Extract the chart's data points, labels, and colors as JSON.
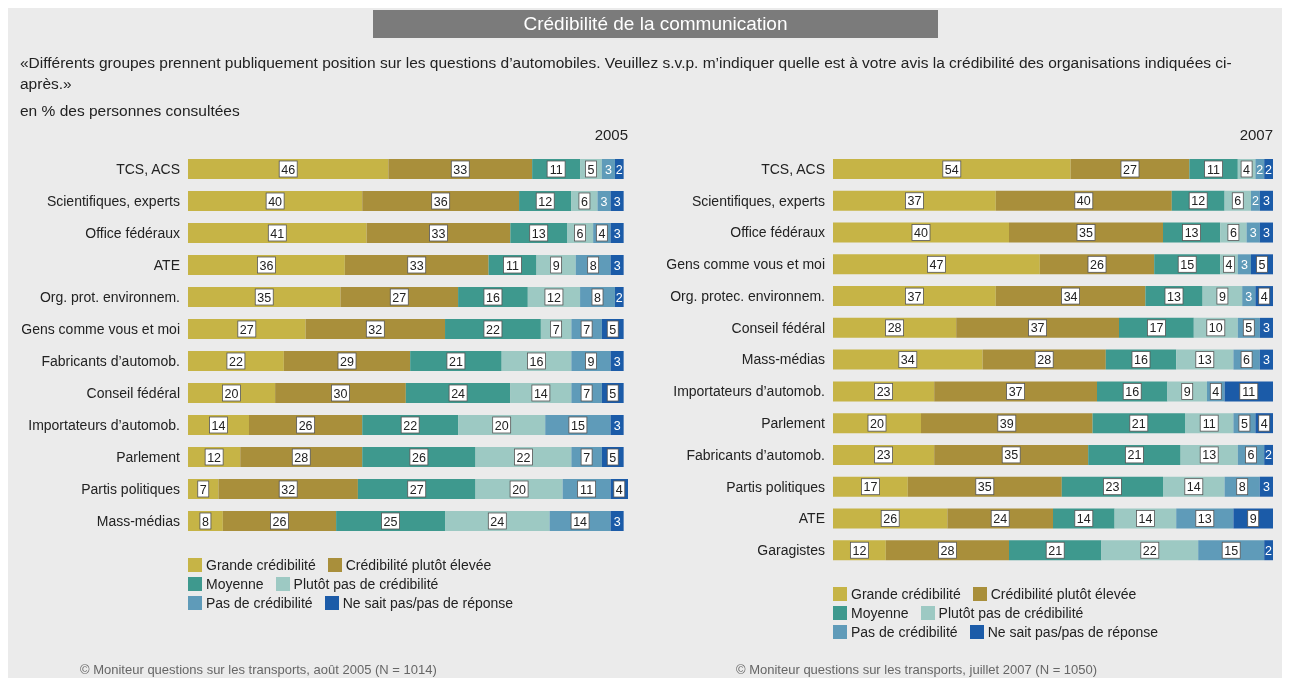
{
  "chart_data": [
    {
      "type": "bar",
      "orientation": "horizontal",
      "stacked": true,
      "data_labels": true,
      "legend": "bottom",
      "tick_labels": "y",
      "title": "2005",
      "annotations": [
        "Crédibilité de la communication",
        "«Différents groupes prennent publiquement position sur les questions d’automobiles. Veuillez s.v.p. m’indiquer quelle est à votre avis la crédibilité des organisations indiquées ci-après.»",
        "en % des personnes consultées",
        "© Moniteur questions sur les transports, août 2005 (N = 1014)"
      ],
      "categories": [
        "TCS, ACS",
        "Scientifiques, experts",
        "Office fédéraux",
        "ATE",
        "Org. prot. environnem.",
        "Gens comme vous et moi",
        "Fabricants d’automob.",
        "Conseil fédéral",
        "Importateurs d’automob.",
        "Parlement",
        "Partis politiques",
        "Mass-médias"
      ],
      "series": [
        {
          "name": "Grande crédibilité",
          "color": "#c6b446",
          "values": [
            46,
            40,
            41,
            36,
            35,
            27,
            22,
            20,
            14,
            12,
            7,
            8
          ]
        },
        {
          "name": "Crédibilité plutôt élevée",
          "color": "#a98f3b",
          "values": [
            33,
            36,
            33,
            33,
            27,
            32,
            29,
            30,
            26,
            28,
            32,
            26
          ]
        },
        {
          "name": "Moyenne",
          "color": "#3e998e",
          "values": [
            11,
            12,
            13,
            11,
            16,
            22,
            21,
            24,
            22,
            26,
            27,
            25
          ]
        },
        {
          "name": "Plutôt pas de crédibilité",
          "color": "#9dc9c3",
          "values": [
            5,
            6,
            6,
            9,
            12,
            7,
            16,
            14,
            20,
            22,
            20,
            24
          ]
        },
        {
          "name": "Pas de crédibilité",
          "color": "#5f9bb9",
          "values": [
            3,
            3,
            4,
            8,
            8,
            7,
            9,
            7,
            15,
            7,
            11,
            14
          ]
        },
        {
          "name": "Ne sait pas/pas de réponse",
          "color": "#1b5ba8",
          "values": [
            2,
            3,
            3,
            3,
            2,
            5,
            3,
            5,
            3,
            5,
            4,
            3
          ]
        }
      ]
    },
    {
      "type": "bar",
      "orientation": "horizontal",
      "stacked": true,
      "data_labels": true,
      "legend": "bottom",
      "tick_labels": "y",
      "title": "2007",
      "annotations": [
        "© Moniteur questions sur les transports, juillet 2007 (N = 1050)"
      ],
      "categories": [
        "TCS, ACS",
        "Scientifiques, experts",
        "Office fédéraux",
        "Gens comme vous et moi",
        "Org. protec. environnem.",
        "Conseil fédéral",
        "Mass-médias",
        "Importateurs d’automob.",
        "Parlement",
        "Fabricants d’automob.",
        "Partis politiques",
        "ATE",
        "Garagistes"
      ],
      "series": [
        {
          "name": "Grande crédibilité",
          "color": "#c6b446",
          "values": [
            54,
            37,
            40,
            47,
            37,
            28,
            34,
            23,
            20,
            23,
            17,
            26,
            12
          ]
        },
        {
          "name": "Crédibilité plutôt élevée",
          "color": "#a98f3b",
          "values": [
            27,
            40,
            35,
            26,
            34,
            37,
            28,
            37,
            39,
            35,
            35,
            24,
            28
          ]
        },
        {
          "name": "Moyenne",
          "color": "#3e998e",
          "values": [
            11,
            12,
            13,
            15,
            13,
            17,
            16,
            16,
            21,
            21,
            23,
            14,
            21
          ]
        },
        {
          "name": "Plutôt pas de crédibilité",
          "color": "#9dc9c3",
          "values": [
            4,
            6,
            6,
            4,
            9,
            10,
            13,
            9,
            11,
            13,
            14,
            14,
            22
          ]
        },
        {
          "name": "Pas de crédibilité",
          "color": "#5f9bb9",
          "values": [
            2,
            2,
            3,
            3,
            3,
            5,
            6,
            4,
            5,
            6,
            8,
            13,
            15
          ]
        },
        {
          "name": "Ne sait pas/pas de réponse",
          "color": "#1b5ba8",
          "values": [
            2,
            3,
            3,
            5,
            4,
            3,
            3,
            11,
            4,
            2,
            3,
            9,
            2
          ]
        }
      ]
    }
  ]
}
